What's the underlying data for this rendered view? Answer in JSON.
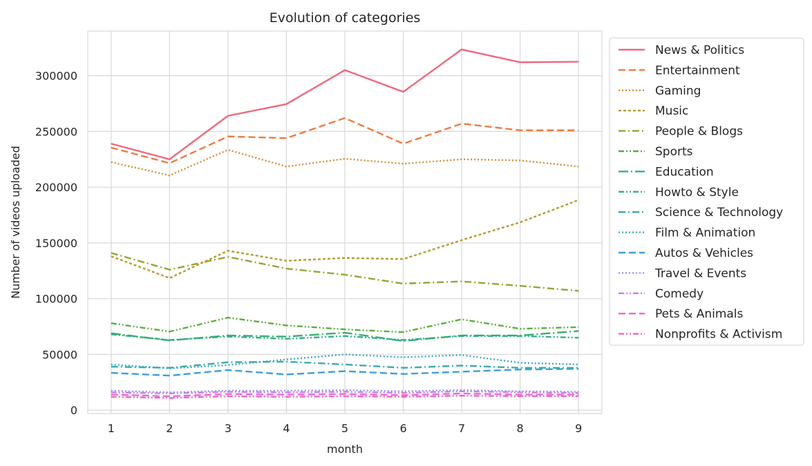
{
  "chart_data": {
    "type": "line",
    "title": "Evolution of categories",
    "xlabel": "month",
    "ylabel": "Number of videos uploaded",
    "x": [
      1,
      2,
      3,
      4,
      5,
      6,
      7,
      8,
      9
    ],
    "xlim": [
      0.6,
      9.4
    ],
    "ylim": [
      -3000,
      340000
    ],
    "yticks": [
      0,
      50000,
      100000,
      150000,
      200000,
      250000,
      300000
    ],
    "grid": true,
    "legend_position": "outside-right",
    "series": [
      {
        "name": "News & Politics",
        "color": "#f0677d",
        "dash": "solid",
        "values": [
          239000,
          225000,
          264000,
          274500,
          305000,
          285500,
          323500,
          312000,
          312500
        ]
      },
      {
        "name": "Entertainment",
        "color": "#ee7a3c",
        "dash": "dashed",
        "values": [
          235500,
          221500,
          245500,
          244000,
          262000,
          239000,
          257000,
          251000,
          251000
        ]
      },
      {
        "name": "Gaming",
        "color": "#cf8c33",
        "dash": "dotted",
        "values": [
          222500,
          210500,
          233500,
          218500,
          225500,
          221000,
          225000,
          224000,
          218500
        ]
      },
      {
        "name": "Music",
        "color": "#b69b33",
        "dash": "finedash",
        "values": [
          138000,
          118500,
          143000,
          134000,
          136500,
          135500,
          152500,
          168500,
          188500
        ]
      },
      {
        "name": "People & Blogs",
        "color": "#97a332",
        "dash": "dashdot",
        "values": [
          141000,
          126000,
          137500,
          127000,
          121500,
          113500,
          115500,
          111500,
          107000
        ]
      },
      {
        "name": "Sports",
        "color": "#5aae3c",
        "dash": "dashdotdot",
        "values": [
          78000,
          70500,
          83000,
          76000,
          72500,
          70000,
          81500,
          73000,
          74500
        ]
      },
      {
        "name": "Education",
        "color": "#34af72",
        "dash": "longdashdot",
        "values": [
          69000,
          62500,
          67000,
          66000,
          69500,
          62000,
          67000,
          67000,
          71000
        ]
      },
      {
        "name": "Howto & Style",
        "color": "#35ad92",
        "dash": "dashdotdot",
        "values": [
          68000,
          63000,
          66000,
          64000,
          66500,
          63000,
          66500,
          66500,
          65000
        ]
      },
      {
        "name": "Science & Technology",
        "color": "#37abaa",
        "dash": "dashdot",
        "values": [
          39000,
          38000,
          43000,
          43500,
          41000,
          38000,
          40000,
          38000,
          38000
        ]
      },
      {
        "name": "Film & Animation",
        "color": "#39a8c3",
        "dash": "dotted",
        "values": [
          41000,
          37500,
          40500,
          45500,
          50000,
          47500,
          49500,
          42500,
          41000
        ]
      },
      {
        "name": "Autos & Vehicles",
        "color": "#3a9ee0",
        "dash": "dashed",
        "values": [
          33500,
          31000,
          36000,
          32000,
          35000,
          32500,
          34500,
          36500,
          37000
        ]
      },
      {
        "name": "Travel & Events",
        "color": "#9a8fef",
        "dash": "dotted",
        "values": [
          17500,
          16000,
          17500,
          17500,
          18000,
          17000,
          18000,
          17000,
          16500
        ]
      },
      {
        "name": "Comedy",
        "color": "#c57ff0",
        "dash": "dashdotdot",
        "values": [
          16000,
          15000,
          16500,
          16000,
          16500,
          15500,
          17000,
          16000,
          15500
        ]
      },
      {
        "name": "Pets & Animals",
        "color": "#ec66d6",
        "dash": "dashed",
        "values": [
          14000,
          12500,
          14500,
          14000,
          14500,
          13500,
          15000,
          14000,
          14000
        ]
      },
      {
        "name": "Nonprofits & Activism",
        "color": "#f464b4",
        "dash": "dashdotdot",
        "values": [
          12000,
          11000,
          12500,
          12000,
          12500,
          12000,
          13000,
          12500,
          12500
        ]
      }
    ]
  }
}
